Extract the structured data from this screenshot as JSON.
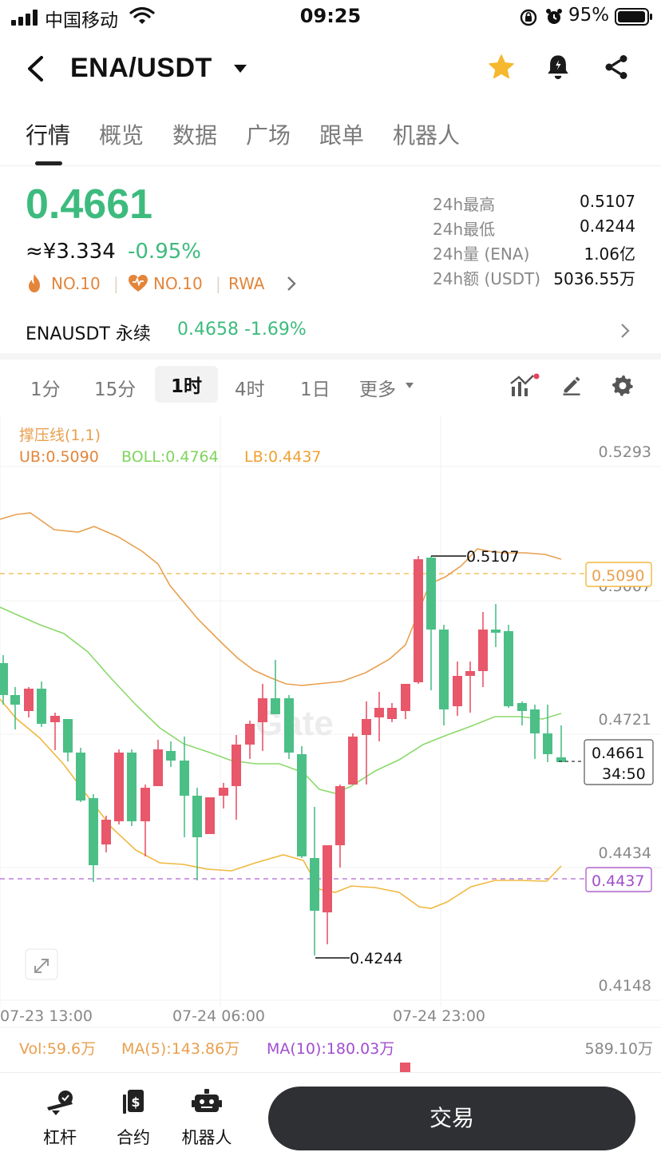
{
  "status_bar": {
    "carrier": "中国移动",
    "time": "09:25",
    "battery_percent": "95%"
  },
  "header": {
    "pair": "ENA/USDT"
  },
  "tabs": [
    "行情",
    "概览",
    "数据",
    "广场",
    "跟单",
    "机器人"
  ],
  "ticker": {
    "price": "0.4661",
    "cny": "≈¥3.334",
    "change": "-0.95%",
    "badges": [
      "NO.10",
      "NO.10",
      "RWA"
    ],
    "stats": [
      {
        "label": "24h最高",
        "value": "0.5107"
      },
      {
        "label": "24h最低",
        "value": "0.4244"
      },
      {
        "label": "24h量 (ENA)",
        "value": "1.06亿"
      },
      {
        "label": "24h额 (USDT)",
        "value": "5036.55万"
      }
    ]
  },
  "perpetual": {
    "name": "ENAUSDT 永续",
    "price_change": "0.4658 -1.69%"
  },
  "intervals": [
    "1分",
    "15分",
    "1时",
    "4时",
    "1日",
    "更多"
  ],
  "chart": {
    "indicator_title": "撑压线(1,1)",
    "ub": "UB:0.5090",
    "boll": "BOLL:0.4764",
    "lb": "LB:0.4437",
    "y_ticks": [
      "0.5293",
      "0.5007",
      "0.4721",
      "0.4434",
      "0.4148"
    ],
    "x_ticks": [
      "07-23 13:00",
      "07-24 06:00",
      "07-24 23:00"
    ],
    "high_label": "0.5107",
    "low_label": "0.4244",
    "ub_tag": "0.5090",
    "lb_tag": "0.4437",
    "last_price_tag": "0.4661",
    "countdown": "34:50",
    "watermark": "Gate",
    "colors": {
      "up": "#e8576a",
      "down": "#4cbf87",
      "ub_line": "#e8a050",
      "boll_line": "#8bd96a",
      "lb_line": "#f0b840"
    }
  },
  "volume": {
    "vol": "Vol:59.6万",
    "ma5": "MA(5):143.86万",
    "ma10": "MA(10):180.03万",
    "axis": "589.10万"
  },
  "bottom_nav": [
    {
      "icon": "leverage-icon",
      "label": "杠杆"
    },
    {
      "icon": "contract-icon",
      "label": "合约"
    },
    {
      "icon": "robot-icon",
      "label": "机器人"
    }
  ],
  "trade_button": "交易"
}
